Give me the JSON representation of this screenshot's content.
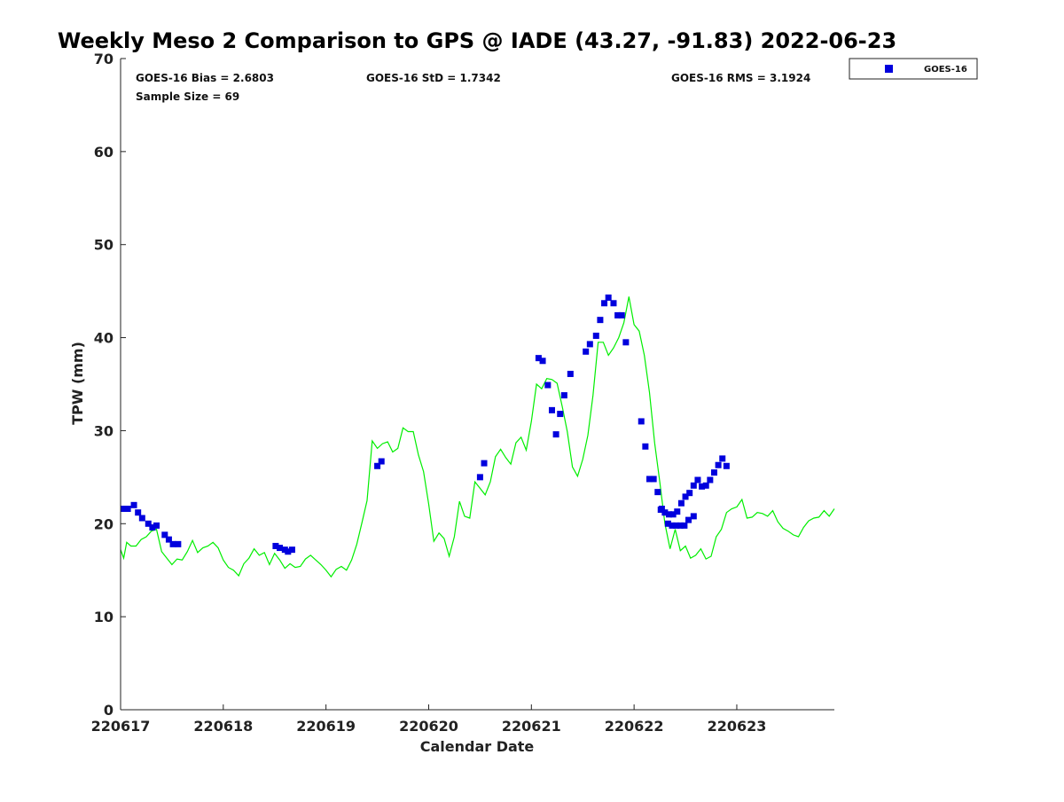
{
  "chart_data": {
    "type": "scatter",
    "title": "Weekly Meso 2 Comparison to GPS @ IADE (43.27, -91.83) 2022-06-23",
    "xlabel": "Calendar Date",
    "ylabel": "TPW (mm)",
    "x_unit": "days",
    "x_ticks": [
      "220617",
      "220618",
      "220619",
      "220620",
      "220621",
      "220622",
      "220623"
    ],
    "xlim": [
      0,
      6.95
    ],
    "ylim": [
      0,
      70
    ],
    "y_ticks": [
      0,
      10,
      20,
      30,
      40,
      50,
      60,
      70
    ],
    "grid": false,
    "legend": {
      "placement": "top-right outside",
      "entries": [
        "GOES-16"
      ]
    },
    "colors": {
      "goes": "#0000dd",
      "gps": "#00ee00"
    },
    "stats": {
      "bias": "GOES-16 Bias = 2.6803",
      "std": "GOES-16 StD = 1.7342",
      "rms": "GOES-16 RMS = 3.1924",
      "sample": "Sample Size = 69"
    },
    "series": [
      {
        "name": "GOES-16",
        "kind": "markers",
        "x": [
          0.03,
          0.07,
          0.13,
          0.17,
          0.21,
          0.27,
          0.31,
          0.35,
          0.43,
          0.47,
          0.51,
          0.56,
          1.51,
          1.55,
          1.6,
          1.63,
          1.67,
          2.5,
          2.54,
          3.5,
          3.54,
          4.07,
          4.11,
          4.16,
          4.2,
          4.24,
          4.28,
          4.32,
          4.38,
          4.53,
          4.57,
          4.63,
          4.67,
          4.71,
          4.75,
          4.8,
          4.84,
          4.88,
          4.92,
          5.07,
          5.11,
          5.15,
          5.19,
          5.23,
          5.27,
          5.33,
          5.37,
          5.41,
          5.45,
          5.49,
          5.53,
          5.58,
          5.26,
          5.3,
          5.34,
          5.38,
          5.42,
          5.46,
          5.5,
          5.54,
          5.58,
          5.62,
          5.66,
          5.7,
          5.74,
          5.78,
          5.82,
          5.86,
          5.9
        ],
        "y": [
          21.6,
          21.6,
          22.0,
          21.2,
          20.6,
          20.0,
          19.6,
          19.8,
          18.8,
          18.3,
          17.8,
          17.8,
          17.6,
          17.4,
          17.2,
          17.0,
          17.2,
          26.2,
          26.7,
          25.0,
          26.5,
          37.8,
          37.5,
          34.9,
          32.2,
          29.6,
          31.8,
          33.8,
          36.1,
          38.5,
          39.3,
          40.2,
          41.9,
          43.7,
          44.3,
          43.7,
          42.4,
          42.4,
          39.5,
          31.0,
          28.3,
          24.8,
          24.8,
          23.4,
          21.6,
          20.0,
          19.8,
          19.8,
          19.8,
          19.8,
          20.4,
          20.8,
          21.5,
          21.2,
          21.0,
          21.0,
          21.3,
          22.2,
          22.9,
          23.3,
          24.1,
          24.7,
          24.0,
          24.1,
          24.7,
          25.5,
          26.3,
          27.0,
          26.2
        ]
      },
      {
        "name": "",
        "kind": "line",
        "x": [
          0.0,
          0.03,
          0.06,
          0.1,
          0.15,
          0.2,
          0.25,
          0.3,
          0.35,
          0.4,
          0.45,
          0.5,
          0.55,
          0.6,
          0.65,
          0.7,
          0.75,
          0.8,
          0.85,
          0.9,
          0.95,
          1.0,
          1.05,
          1.1,
          1.15,
          1.2,
          1.25,
          1.3,
          1.35,
          1.4,
          1.45,
          1.5,
          1.55,
          1.6,
          1.65,
          1.7,
          1.75,
          1.8,
          1.85,
          1.9,
          1.95,
          2.0,
          2.05,
          2.1,
          2.15,
          2.2,
          2.25,
          2.3,
          2.35,
          2.4,
          2.45,
          2.5,
          2.55,
          2.6,
          2.65,
          2.7,
          2.75,
          2.8,
          2.85,
          2.9,
          2.95,
          3.0,
          3.05,
          3.1,
          3.15,
          3.2,
          3.25,
          3.3,
          3.35,
          3.4,
          3.45,
          3.5,
          3.55,
          3.6,
          3.65,
          3.7,
          3.75,
          3.8,
          3.85,
          3.9,
          3.95,
          4.0,
          4.05,
          4.1,
          4.15,
          4.2,
          4.25,
          4.3,
          4.35,
          4.4,
          4.45,
          4.5,
          4.55,
          4.6,
          4.65,
          4.7,
          4.75,
          4.8,
          4.85,
          4.9,
          4.95,
          5.0,
          5.05,
          5.1,
          5.15,
          5.2,
          5.25,
          5.3,
          5.35,
          5.4,
          5.45,
          5.5,
          5.55,
          5.6,
          5.65,
          5.7,
          5.75,
          5.8,
          5.85,
          5.9,
          5.95,
          6.0,
          6.05,
          6.1,
          6.15,
          6.2,
          6.25,
          6.3,
          6.35,
          6.4,
          6.45,
          6.5,
          6.55,
          6.6,
          6.65,
          6.7,
          6.75,
          6.8,
          6.85,
          6.9,
          6.95
        ],
        "y": [
          17.2,
          16.3,
          18.0,
          17.6,
          17.6,
          18.3,
          18.6,
          19.2,
          19.4,
          17.0,
          16.3,
          15.6,
          16.2,
          16.1,
          17.0,
          18.2,
          16.9,
          17.4,
          17.6,
          18.0,
          17.4,
          16.1,
          15.3,
          15.0,
          14.4,
          15.7,
          16.3,
          17.3,
          16.6,
          16.9,
          15.6,
          16.8,
          16.1,
          15.2,
          15.7,
          15.3,
          15.4,
          16.2,
          16.6,
          16.1,
          15.6,
          15.0,
          14.3,
          15.1,
          15.4,
          15.0,
          16.1,
          17.8,
          20.1,
          22.5,
          28.9,
          28.1,
          28.6,
          28.8,
          27.7,
          28.1,
          30.3,
          29.9,
          29.9,
          27.4,
          25.6,
          22.1,
          18.1,
          19.0,
          18.4,
          16.5,
          18.6,
          22.4,
          20.8,
          20.6,
          24.5,
          23.8,
          23.1,
          24.5,
          27.2,
          28.0,
          27.1,
          26.4,
          28.7,
          29.3,
          27.9,
          31.0,
          35.0,
          34.5,
          35.6,
          35.5,
          35.1,
          32.6,
          29.9,
          26.1,
          25.1,
          26.9,
          29.5,
          33.8,
          39.5,
          39.5,
          38.1,
          38.9,
          40.0,
          41.6,
          44.4,
          41.4,
          40.7,
          38.1,
          34.1,
          28.7,
          24.5,
          20.0,
          17.3,
          19.4,
          17.1,
          17.6,
          16.3,
          16.6,
          17.3,
          16.2,
          16.5,
          18.6,
          19.4,
          21.2,
          21.6,
          21.8,
          22.6,
          20.6,
          20.7,
          21.2,
          21.1,
          20.8,
          21.4,
          20.2,
          19.5,
          19.2,
          18.8,
          18.6,
          19.6,
          20.3,
          20.6,
          20.7,
          21.4,
          20.8,
          21.6
        ]
      }
    ]
  }
}
